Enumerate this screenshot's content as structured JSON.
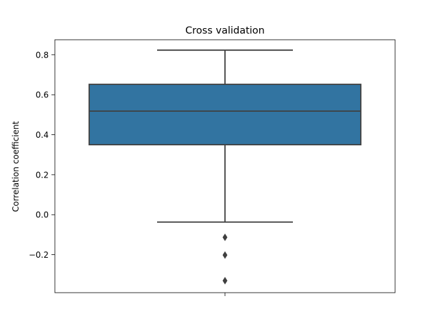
{
  "chart_data": {
    "type": "box",
    "title": "Cross validation",
    "xlabel": "",
    "ylabel": "Correlation coefficient",
    "ylim": [
      -0.39,
      0.875
    ],
    "yticks": [
      -0.2,
      0.0,
      0.2,
      0.4,
      0.6,
      0.8
    ],
    "ytick_labels": [
      "−0.2",
      "0.0",
      "0.2",
      "0.4",
      "0.6",
      "0.8"
    ],
    "grid": false,
    "box": {
      "whisker_low": -0.037,
      "q1": 0.35,
      "median": 0.518,
      "q3": 0.652,
      "whisker_high": 0.823,
      "outliers": [
        -0.113,
        -0.202,
        -0.33
      ]
    },
    "colors": {
      "box_fill": "#3274a1",
      "lines": "#3f3f3f"
    }
  }
}
